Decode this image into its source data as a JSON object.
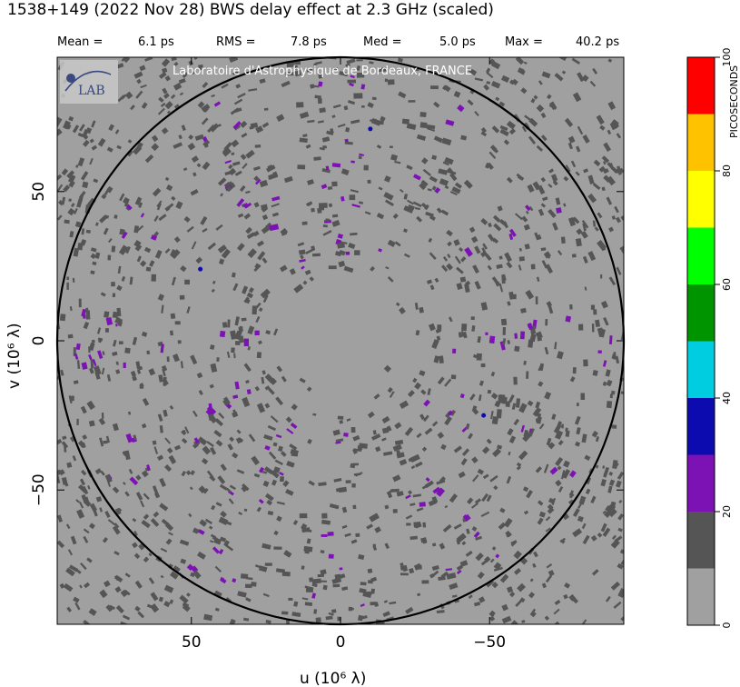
{
  "chart_data": {
    "type": "heatmap",
    "title": "1538+149  (2022 Nov 28)   BWS delay effect at  2.3 GHz (scaled)",
    "stats": [
      {
        "label": "Mean =",
        "value": "6.1 ps"
      },
      {
        "label": "RMS =",
        "value": "7.8 ps"
      },
      {
        "label": "Med =",
        "value": "5.0 ps"
      },
      {
        "label": "Max =",
        "value": "40.2 ps"
      }
    ],
    "watermark": "Laboratoire d'Astrophysique de Bordeaux, FRANCE",
    "logo_text": "LAB",
    "xlabel": "u  (10⁶ λ)",
    "ylabel": "v  (10⁶ λ)",
    "xlim": [
      95,
      -95
    ],
    "ylim": [
      -95,
      95
    ],
    "xticks": [
      {
        "v": 50,
        "label": "50"
      },
      {
        "v": 0,
        "label": "0"
      },
      {
        "v": -50,
        "label": "−50"
      }
    ],
    "yticks": [
      {
        "v": 50,
        "label": "50"
      },
      {
        "v": 0,
        "label": "0"
      },
      {
        "v": -50,
        "label": "−50"
      }
    ],
    "circle_radius": 95,
    "colorbar": {
      "label": "PICOSECONDS",
      "range": [
        0,
        100
      ],
      "ticks": [
        0,
        20,
        40,
        60,
        80,
        100
      ],
      "colors": [
        "#a0a0a0",
        "#555555",
        "#7d12b4",
        "#0b0bb0",
        "#00cde0",
        "#009400",
        "#00ff00",
        "#ffff00",
        "#ffc200",
        "#ff0000"
      ]
    },
    "background_value_range": "0-10 ps",
    "patches": {
      "dark_gray": "10-20 ps",
      "purple": "20-30 ps",
      "blue": "30-40 ps"
    }
  }
}
